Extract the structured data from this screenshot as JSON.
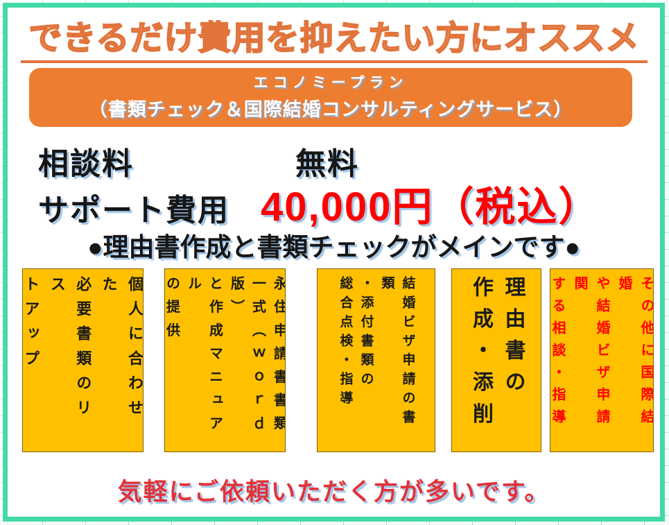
{
  "header": {
    "title": "できるだけ費用を抑えたい方にオススメ"
  },
  "banner": {
    "plan_name": "エコノミープラン",
    "plan_subtitle": "（書類チェック＆国際結婚コンサルティングサービス）"
  },
  "pricing": {
    "rows": [
      {
        "label": "相談料",
        "value": "無料"
      },
      {
        "label": "サポート費用",
        "value": "40,000円（税込）"
      }
    ]
  },
  "highlight": {
    "text": "●理由書作成と書類チェックがメインです●"
  },
  "services": {
    "items": [
      {
        "text": "個人に合わせた\n必要書類のリス\nトアップ",
        "text_color": "#1A1A1A"
      },
      {
        "text": "永住申請書書類\n一式（ｗｏｒｄ版）\nと作成マニュアル\nの提供",
        "text_color": "#1A1A1A"
      },
      {
        "text": "結婚ビザ申請の書類\n・添付書類の\n総合点検・指導",
        "text_color": "#1A1A1A"
      },
      {
        "text": "理由書の\n作成・添削",
        "text_color": "#1A1A1A"
      },
      {
        "text": "その他に国際結婚\nや結婚ビザ申請関\nする相談・指導",
        "text_color": "#FF0000"
      }
    ]
  },
  "footer": {
    "text": "気軽にご依頼いただく方が多いです。"
  },
  "colors": {
    "frame_teal": "#43D9A8",
    "accent_orange": "#ED7D31",
    "title_fill": "#F7BC92",
    "title_outline": "#E1743C",
    "card_yellow": "#FFC000",
    "card_border": "#7F6000",
    "price_red": "#FF0000",
    "footer_red": "#E23339",
    "text_shadow_blue": "#A3C6E8"
  }
}
